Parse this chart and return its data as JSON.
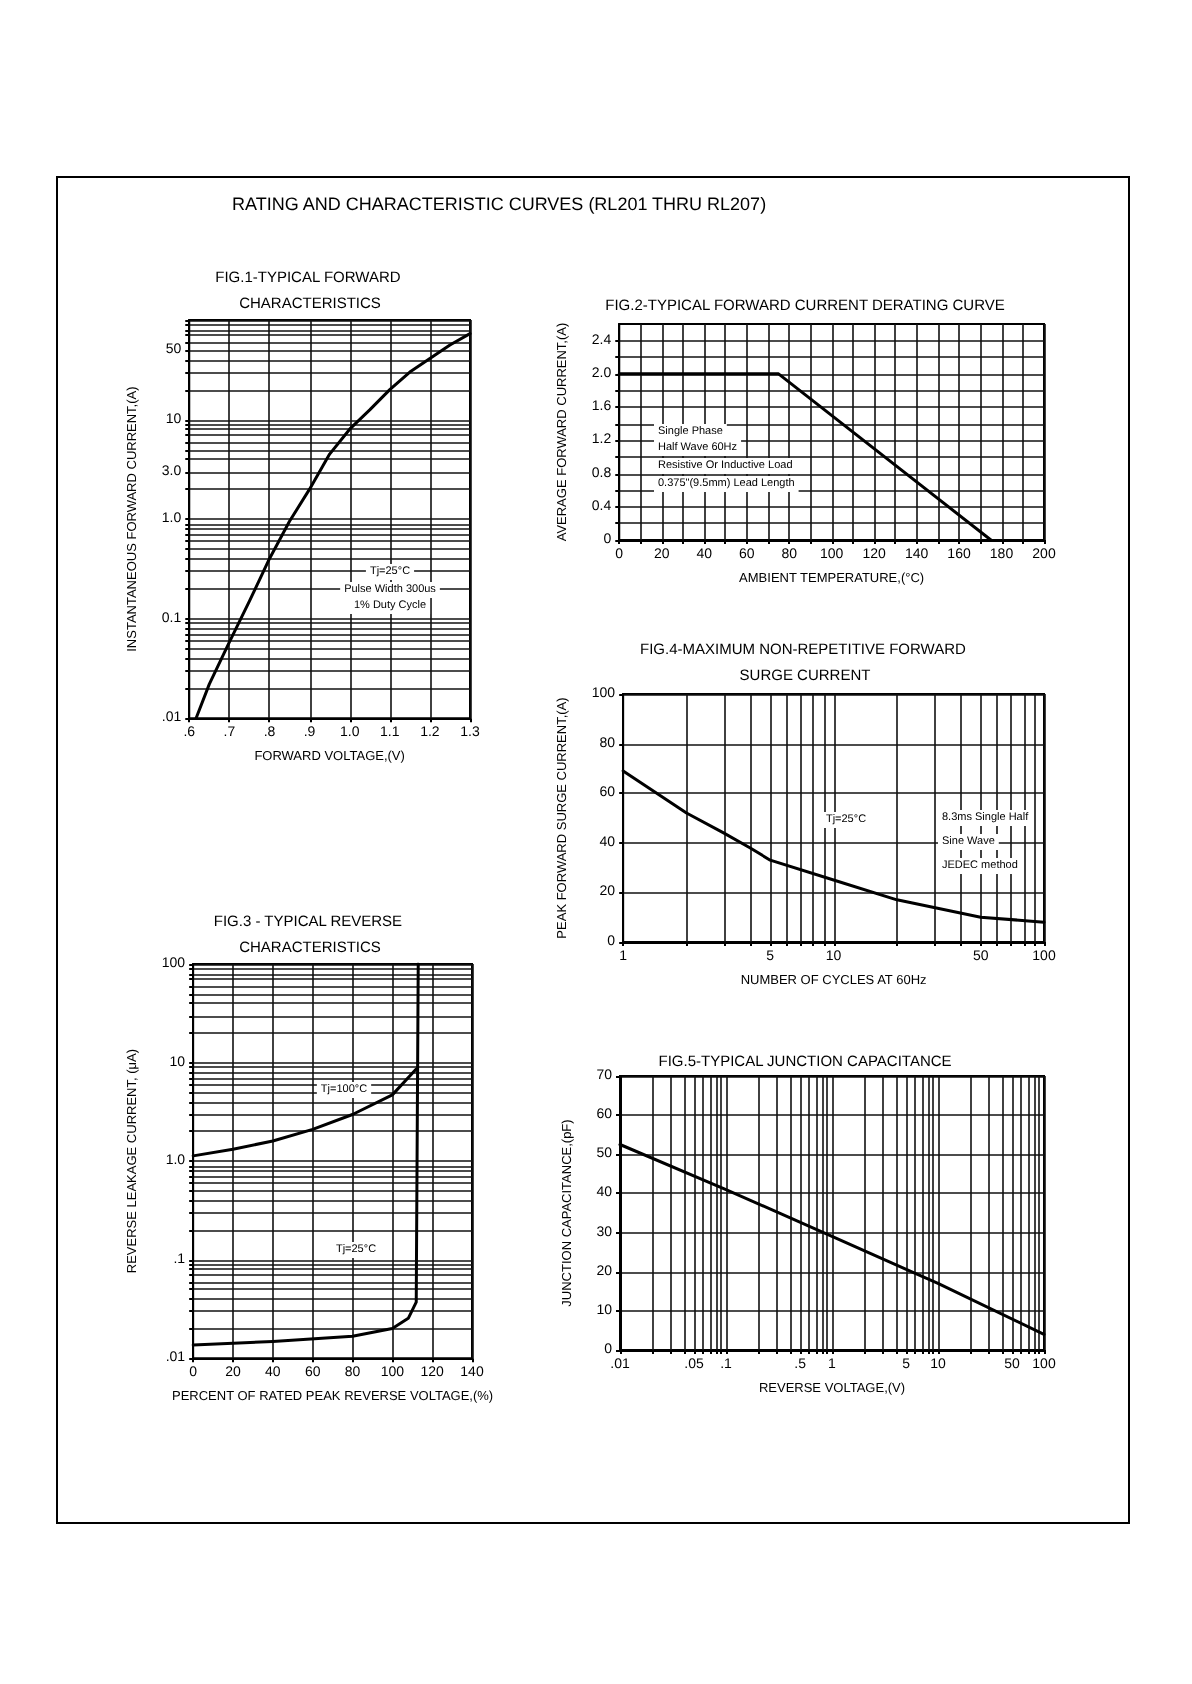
{
  "chart_data": [
    {
      "type": "line",
      "title": "FIG.1-TYPICAL FORWARD CHARACTERISTICS",
      "xlabel": "FORWARD VOLTAGE,(V)",
      "ylabel": "INSTANTANEOUS FORWARD CURRENT,(A)",
      "log": "y",
      "grid": true,
      "marker": "none",
      "xlim": [
        0.6,
        1.3
      ],
      "ylim": [
        0.01,
        100
      ],
      "xticks": [
        {
          "value": 0.6,
          "label": ".6"
        },
        {
          "value": 0.7,
          "label": ".7"
        },
        {
          "value": 0.8,
          "label": ".8"
        },
        {
          "value": 0.9,
          "label": ".9"
        },
        {
          "value": 1,
          "label": "1.0"
        },
        1.1,
        1.2,
        1.3
      ],
      "yticks": [
        {
          "value": 0.01,
          "label": ".01"
        },
        {
          "value": 0.02,
          "label": null
        },
        {
          "value": 0.03,
          "label": null
        },
        {
          "value": 0.04,
          "label": null
        },
        {
          "value": 0.05,
          "label": null
        },
        {
          "value": 0.06,
          "label": null
        },
        {
          "value": 0.07,
          "label": null
        },
        {
          "value": 0.08,
          "label": null
        },
        {
          "value": 0.09,
          "label": null
        },
        0.1,
        {
          "value": 0.2,
          "label": null
        },
        {
          "value": 0.3,
          "label": null
        },
        {
          "value": 0.4,
          "label": null
        },
        {
          "value": 0.5,
          "label": null
        },
        {
          "value": 0.6,
          "label": null
        },
        {
          "value": 0.7,
          "label": null
        },
        {
          "value": 0.8,
          "label": null
        },
        {
          "value": 0.9,
          "label": null
        },
        {
          "value": 1,
          "label": "1.0"
        },
        {
          "value": 2,
          "label": null
        },
        {
          "value": 3,
          "label": "3.0"
        },
        {
          "value": 4,
          "label": null
        },
        {
          "value": 5,
          "label": null
        },
        {
          "value": 6,
          "label": null
        },
        {
          "value": 7,
          "label": null
        },
        {
          "value": 8,
          "label": null
        },
        {
          "value": 9,
          "label": null
        },
        10,
        {
          "value": 20,
          "label": null
        },
        {
          "value": 30,
          "label": null
        },
        {
          "value": 40,
          "label": null
        },
        50,
        {
          "value": 60,
          "label": null
        },
        {
          "value": 70,
          "label": null
        },
        {
          "value": 80,
          "label": null
        },
        {
          "value": 90,
          "label": null
        },
        {
          "value": 100,
          "label": null
        }
      ],
      "series": [
        {
          "color": "#000000",
          "x": [
            0.617,
            0.65,
            0.7,
            0.75,
            0.8,
            0.85,
            0.9,
            0.95,
            1.0,
            1.05,
            1.1,
            1.15,
            1.2,
            1.25,
            1.3
          ],
          "values": [
            0.01,
            0.022,
            0.058,
            0.15,
            0.4,
            0.95,
            2.0,
            4.5,
            8,
            12.5,
            20,
            30,
            41,
            56,
            73
          ]
        }
      ],
      "annotations": [
        "RATING AND CHARACTERISTIC CURVES (RL201 THRU RL207)",
        "Tj=25°C",
        "Pulse Width 300us",
        "1% Duty Cycle"
      ]
    },
    {
      "type": "line",
      "title": "FIG.2-TYPICAL FORWARD CURRENT DERATING CURVE",
      "xlabel": "AMBIENT TEMPERATURE,(°C)",
      "ylabel": "AVERAGE FORWARD CURRENT,(A)",
      "grid": true,
      "marker": "none",
      "xlim": [
        0,
        200
      ],
      "ylim": [
        0,
        2.6
      ],
      "xticks": [
        0,
        {
          "value": 10,
          "label": null
        },
        20,
        {
          "value": 30,
          "label": null
        },
        40,
        {
          "value": 50,
          "label": null
        },
        60,
        {
          "value": 70,
          "label": null
        },
        80,
        {
          "value": 90,
          "label": null
        },
        100,
        {
          "value": 110,
          "label": null
        },
        120,
        {
          "value": 130,
          "label": null
        },
        140,
        {
          "value": 150,
          "label": null
        },
        160,
        {
          "value": 170,
          "label": null
        },
        180,
        {
          "value": 190,
          "label": null
        },
        200
      ],
      "yticks": [
        0,
        {
          "value": 0.2,
          "label": null
        },
        0.4,
        {
          "value": 0.6,
          "label": null
        },
        0.8,
        {
          "value": 1,
          "label": null
        },
        1.2,
        {
          "value": 1.4,
          "label": null
        },
        1.6,
        {
          "value": 1.8,
          "label": null
        },
        {
          "value": 2,
          "label": "2.0"
        },
        {
          "value": 2.2,
          "label": null
        },
        2.4
      ],
      "series": [
        {
          "color": "#000000",
          "x": [
            0,
            75,
            175
          ],
          "values": [
            2.0,
            2.0,
            0
          ]
        }
      ],
      "annotations": [
        "Single Phase",
        "Half Wave 60Hz",
        "Resistive Or Inductive Load",
        "0.375\"(9.5mm) Lead Length"
      ]
    },
    {
      "type": "line",
      "title": "FIG.4-MAXIMUM NON-REPETITIVE FORWARD SURGE CURRENT",
      "xlabel": "NUMBER OF CYCLES AT 60Hz",
      "ylabel": "PEAK FORWARD SURGE CURRENT,(A)",
      "log": "x",
      "grid": true,
      "marker": "none",
      "xlim": [
        1,
        100
      ],
      "ylim": [
        0,
        100
      ],
      "xticks": [
        1,
        {
          "value": 2,
          "label": null
        },
        {
          "value": 3,
          "label": null
        },
        {
          "value": 4,
          "label": null
        },
        5,
        {
          "value": 6,
          "label": null
        },
        {
          "value": 7,
          "label": null
        },
        {
          "value": 8,
          "label": null
        },
        {
          "value": 9,
          "label": null
        },
        10,
        {
          "value": 20,
          "label": null
        },
        {
          "value": 30,
          "label": null
        },
        {
          "value": 40,
          "label": null
        },
        50,
        {
          "value": 60,
          "label": null
        },
        {
          "value": 70,
          "label": null
        },
        {
          "value": 80,
          "label": null
        },
        {
          "value": 90,
          "label": null
        },
        100
      ],
      "yticks": [
        0,
        20,
        40,
        60,
        80,
        100
      ],
      "series": [
        {
          "color": "#000000",
          "x": [
            1,
            2,
            3,
            4,
            5,
            10,
            20,
            50,
            100
          ],
          "values": [
            69,
            52,
            44,
            38,
            33,
            25,
            17,
            10,
            8
          ]
        }
      ],
      "annotations": [
        "Tj=25°C",
        "8.3ms Single Half",
        "Sine Wave",
        "JEDEC method"
      ]
    },
    {
      "type": "line",
      "title": "FIG.3 - TYPICAL REVERSE CHARACTERISTICS",
      "xlabel": "PERCENT OF RATED PEAK REVERSE VOLTAGE,(%)",
      "ylabel": "REVERSE LEAKAGE CURRENT, (μA)",
      "log": "y",
      "grid": true,
      "marker": "none",
      "xlim": [
        0,
        140
      ],
      "ylim": [
        0.01,
        100
      ],
      "xticks": [
        0,
        20,
        40,
        60,
        80,
        100,
        120,
        140
      ],
      "yticks": [
        {
          "value": 0.01,
          "label": ".01"
        },
        {
          "value": 0.02,
          "label": null
        },
        {
          "value": 0.03,
          "label": null
        },
        {
          "value": 0.04,
          "label": null
        },
        {
          "value": 0.05,
          "label": null
        },
        {
          "value": 0.06,
          "label": null
        },
        {
          "value": 0.07,
          "label": null
        },
        {
          "value": 0.08,
          "label": null
        },
        {
          "value": 0.09,
          "label": null
        },
        {
          "value": 0.1,
          "label": ".1"
        },
        {
          "value": 0.2,
          "label": null
        },
        {
          "value": 0.3,
          "label": null
        },
        {
          "value": 0.4,
          "label": null
        },
        {
          "value": 0.5,
          "label": null
        },
        {
          "value": 0.6,
          "label": null
        },
        {
          "value": 0.7,
          "label": null
        },
        {
          "value": 0.8,
          "label": null
        },
        {
          "value": 0.9,
          "label": null
        },
        {
          "value": 1,
          "label": "1.0"
        },
        {
          "value": 2,
          "label": null
        },
        {
          "value": 3,
          "label": null
        },
        {
          "value": 4,
          "label": null
        },
        {
          "value": 5,
          "label": null
        },
        {
          "value": 6,
          "label": null
        },
        {
          "value": 7,
          "label": null
        },
        {
          "value": 8,
          "label": null
        },
        {
          "value": 9,
          "label": null
        },
        10,
        {
          "value": 20,
          "label": null
        },
        {
          "value": 30,
          "label": null
        },
        {
          "value": 40,
          "label": null
        },
        {
          "value": 50,
          "label": null
        },
        {
          "value": 60,
          "label": null
        },
        {
          "value": 70,
          "label": null
        },
        {
          "value": 80,
          "label": null
        },
        {
          "value": 90,
          "label": null
        },
        100
      ],
      "series": [
        {
          "color": "#000000",
          "x": [
            0,
            20,
            40,
            60,
            80,
            100,
            112
          ],
          "values": [
            1.13,
            1.32,
            1.6,
            2.1,
            2.97,
            4.7,
            8.6
          ]
        },
        {
          "color": "#000000",
          "x": [
            0,
            40,
            80,
            100,
            108,
            112,
            113
          ],
          "values": [
            0.0136,
            0.0148,
            0.0167,
            0.02,
            0.0254,
            0.037,
            100
          ]
        }
      ],
      "annotations": [
        "Tj=100°C",
        "Tj=25°C"
      ]
    },
    {
      "type": "line",
      "title": "FIG.5-TYPICAL JUNCTION CAPACITANCE",
      "xlabel": "REVERSE VOLTAGE,(V)",
      "ylabel": "JUNCTION CAPACITANCE,(pF)",
      "log": "x",
      "grid": true,
      "marker": "none",
      "xlim": [
        0.01,
        100
      ],
      "ylim": [
        0,
        70
      ],
      "xticks": [
        {
          "value": 0.01,
          "label": ".01"
        },
        {
          "value": 0.02,
          "label": null
        },
        {
          "value": 0.03,
          "label": null
        },
        {
          "value": 0.04,
          "label": null
        },
        {
          "value": 0.05,
          "label": ".05"
        },
        {
          "value": 0.06,
          "label": null
        },
        {
          "value": 0.07,
          "label": null
        },
        {
          "value": 0.08,
          "label": null
        },
        {
          "value": 0.09,
          "label": null
        },
        {
          "value": 0.1,
          "label": ".1"
        },
        {
          "value": 0.2,
          "label": null
        },
        {
          "value": 0.3,
          "label": null
        },
        {
          "value": 0.4,
          "label": null
        },
        {
          "value": 0.5,
          "label": ".5"
        },
        {
          "value": 0.6,
          "label": null
        },
        {
          "value": 0.7,
          "label": null
        },
        {
          "value": 0.8,
          "label": null
        },
        {
          "value": 0.9,
          "label": null
        },
        1,
        {
          "value": 2,
          "label": null
        },
        {
          "value": 3,
          "label": null
        },
        {
          "value": 4,
          "label": null
        },
        5,
        {
          "value": 6,
          "label": null
        },
        {
          "value": 7,
          "label": null
        },
        {
          "value": 8,
          "label": null
        },
        {
          "value": 9,
          "label": null
        },
        10,
        {
          "value": 20,
          "label": null
        },
        {
          "value": 30,
          "label": null
        },
        {
          "value": 40,
          "label": null
        },
        50,
        {
          "value": 60,
          "label": null
        },
        {
          "value": 70,
          "label": null
        },
        {
          "value": 80,
          "label": null
        },
        {
          "value": 90,
          "label": null
        },
        100
      ],
      "yticks": [
        0,
        10,
        20,
        30,
        40,
        50,
        60,
        70
      ],
      "series": [
        {
          "color": "#000000",
          "x": [
            0.01,
            0.1,
            1,
            10,
            100
          ],
          "values": [
            52.5,
            41,
            29,
            17,
            4
          ]
        }
      ]
    }
  ]
}
